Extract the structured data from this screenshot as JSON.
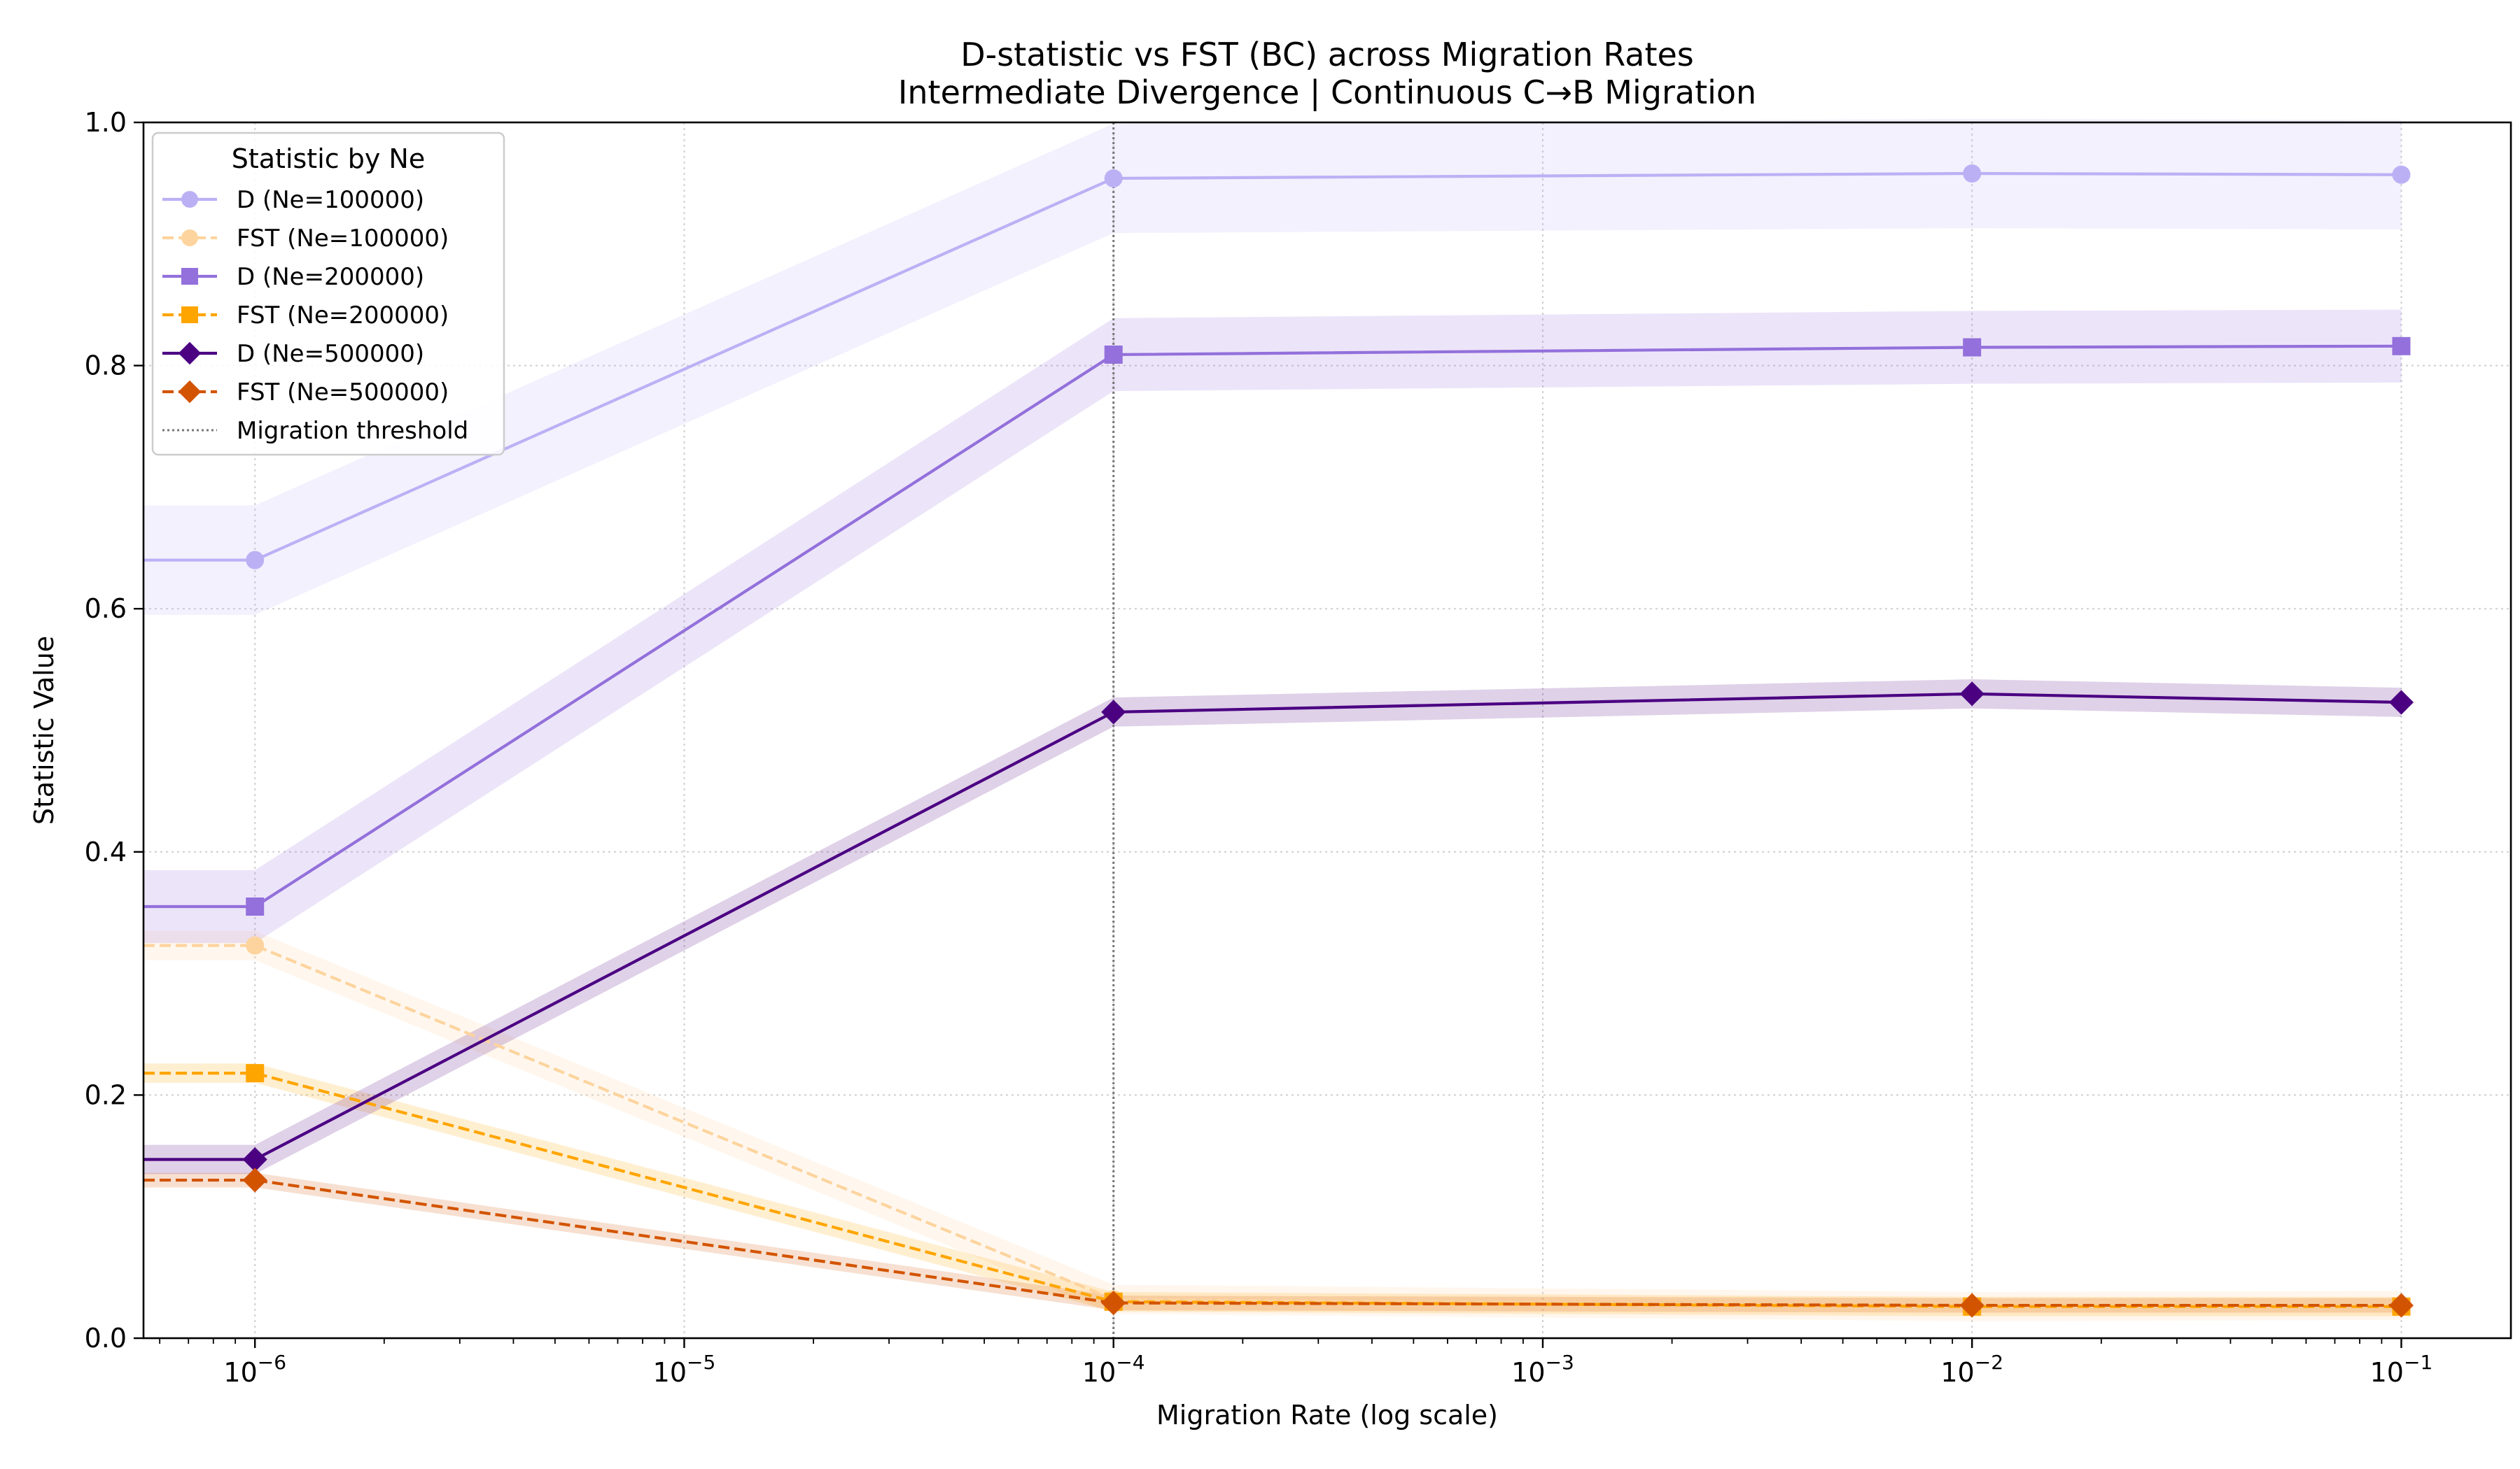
{
  "chart_data": {
    "type": "line",
    "title": "D-statistic vs FST (BC) across Migration Rates",
    "subtitle": "Intermediate Divergence | Continuous C→B Migration",
    "xlabel": "Migration Rate (log scale)",
    "ylabel": "Statistic Value",
    "x_scale": "log",
    "x": [
      1e-06,
      0.0001,
      0.01,
      0.1
    ],
    "xlim": [
      5.5e-07,
      0.18
    ],
    "ylim": [
      0,
      1.0
    ],
    "x_ticks": [
      {
        "value": 1e-06,
        "base": "10",
        "exp": "−6"
      },
      {
        "value": 1e-05,
        "base": "10",
        "exp": "−5"
      },
      {
        "value": 0.0001,
        "base": "10",
        "exp": "−4"
      },
      {
        "value": 0.001,
        "base": "10",
        "exp": "−3"
      },
      {
        "value": 0.01,
        "base": "10",
        "exp": "−2"
      },
      {
        "value": 0.1,
        "base": "10",
        "exp": "−1"
      }
    ],
    "y_ticks": [
      "0.0",
      "0.2",
      "0.4",
      "0.6",
      "0.8",
      "1.0"
    ],
    "grid": true,
    "threshold": {
      "x": 0.0001,
      "label": "Migration threshold",
      "color": "#777777"
    },
    "legend": {
      "title": "Statistic by Ne",
      "position": "top-left"
    },
    "series": [
      {
        "name": "D (Ne=100000)",
        "color": "#bcb0f5",
        "dash": false,
        "marker": "circle",
        "values": [
          0.64,
          0.954,
          0.958,
          0.957
        ],
        "band": 0.045
      },
      {
        "name": "FST (Ne=100000)",
        "color": "#fdd49e",
        "dash": true,
        "marker": "circle",
        "values": [
          0.323,
          0.032,
          0.026,
          0.027
        ],
        "band": 0.012
      },
      {
        "name": "D (Ne=200000)",
        "color": "#9370db",
        "dash": false,
        "marker": "square",
        "values": [
          0.355,
          0.809,
          0.815,
          0.816
        ],
        "band": 0.03
      },
      {
        "name": "FST (Ne=200000)",
        "color": "#ffa500",
        "dash": true,
        "marker": "square",
        "values": [
          0.218,
          0.03,
          0.026,
          0.026
        ],
        "band": 0.008
      },
      {
        "name": "D (Ne=500000)",
        "color": "#4b0082",
        "dash": false,
        "marker": "diamond",
        "values": [
          0.147,
          0.515,
          0.53,
          0.523
        ],
        "band": 0.012
      },
      {
        "name": "FST (Ne=500000)",
        "color": "#d35400",
        "dash": true,
        "marker": "diamond",
        "values": [
          0.13,
          0.029,
          0.027,
          0.027
        ],
        "band": 0.006
      }
    ]
  }
}
